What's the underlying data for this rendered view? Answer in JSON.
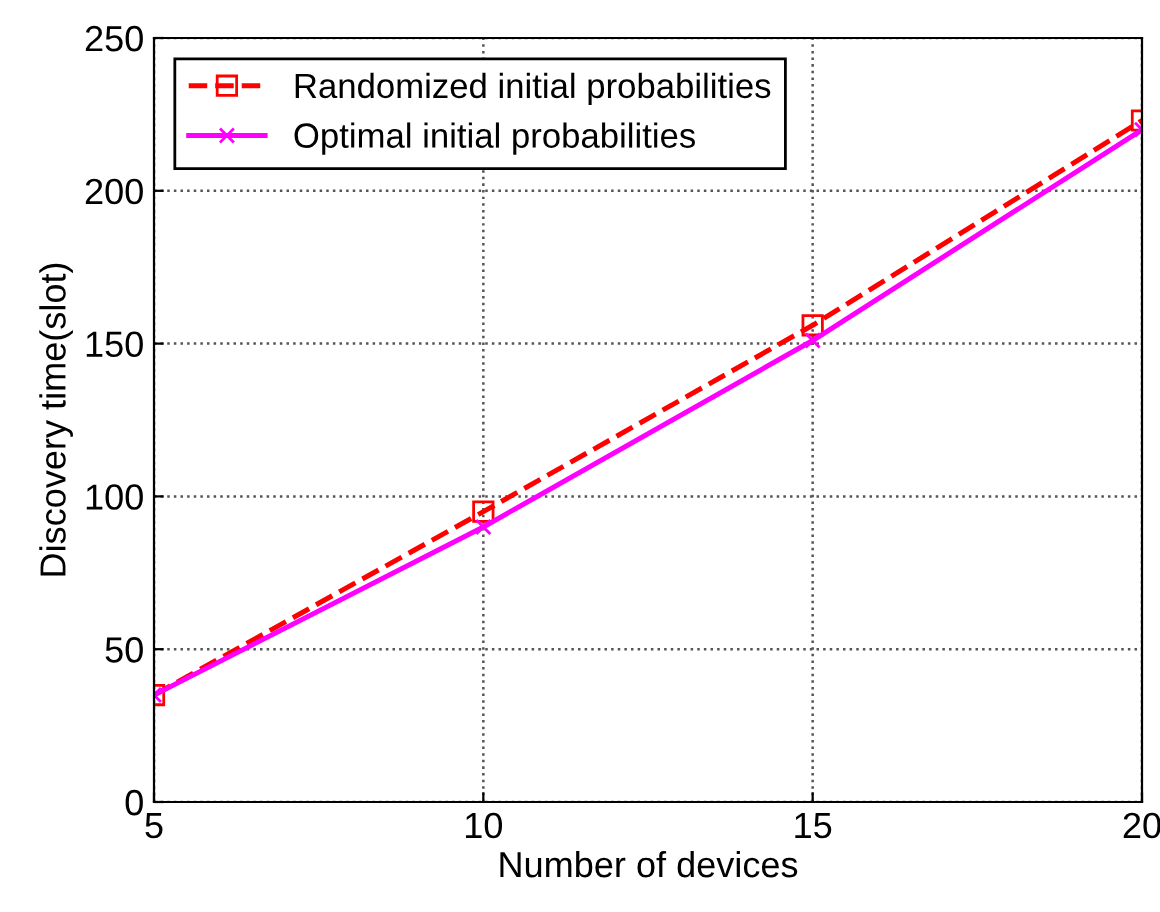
{
  "chart_data": {
    "type": "line",
    "xlabel": "Number of devices",
    "ylabel": "Discovery time(slot)",
    "x": [
      5,
      10,
      15,
      20
    ],
    "series": [
      {
        "name": "Randomized initial probabilities",
        "color": "#ff0000",
        "values": [
          35,
          95,
          156,
          223
        ],
        "marker": "square",
        "line_style": "dashed"
      },
      {
        "name": "Optimal initial probabilities",
        "color": "#ff00ff",
        "values": [
          35,
          90,
          151,
          220
        ],
        "marker": "cross",
        "line_style": "solid"
      }
    ],
    "xlim": [
      5,
      20
    ],
    "xticks": [
      5,
      10,
      15,
      20
    ],
    "ylim": [
      0,
      250
    ],
    "yticks": [
      0,
      50,
      100,
      150,
      200,
      250
    ],
    "grid": true,
    "legend": "top left"
  }
}
